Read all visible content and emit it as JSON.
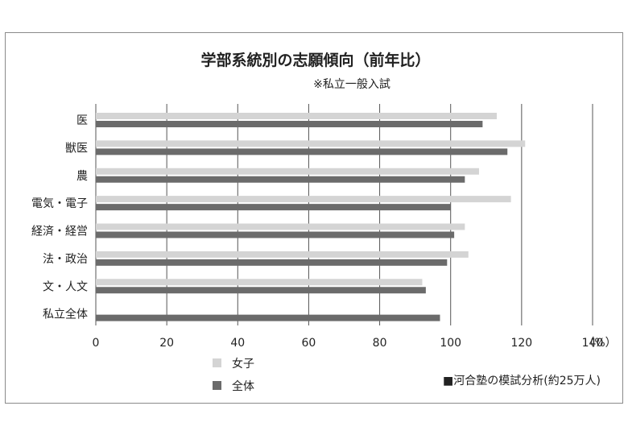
{
  "chart_data": {
    "type": "bar",
    "orientation": "horizontal",
    "title": "学部系統別の志願傾向（前年比）",
    "subtitle": "※私立一般入試",
    "categories": [
      "医",
      "獣医",
      "農",
      "電気・電子",
      "経済・経営",
      "法・政治",
      "文・人文",
      "私立全体"
    ],
    "series": [
      {
        "name": "女子",
        "color": "#d4d4d4",
        "values": [
          113,
          121,
          108,
          117,
          104,
          105,
          92,
          null
        ]
      },
      {
        "name": "全体",
        "color": "#6b6b6b",
        "values": [
          109,
          116,
          104,
          100,
          101,
          99,
          93,
          97
        ]
      }
    ],
    "xlim": [
      0,
      140
    ],
    "xticks": [
      "0",
      "20",
      "40",
      "60",
      "80",
      "100",
      "120",
      "140"
    ],
    "xunit": "（%）",
    "grid": true,
    "legend_position": "bottom-left",
    "source": "■河合塾の模試分析(約25万人)"
  }
}
